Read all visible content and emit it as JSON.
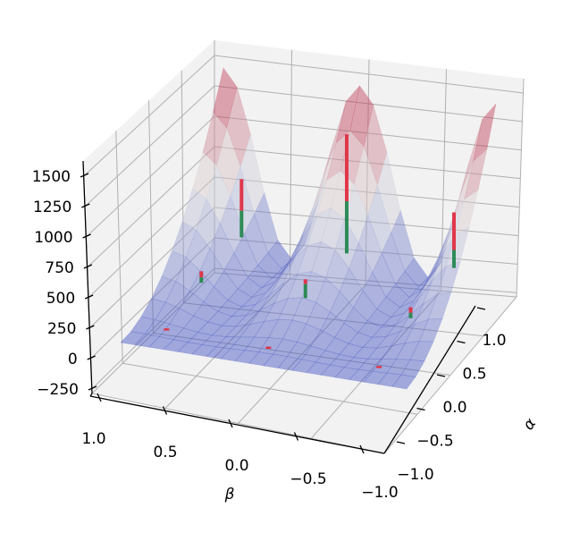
{
  "chart_data": {
    "type": "surface",
    "title": "",
    "xlabel": "β",
    "ylabel": "α",
    "zlabel": "",
    "colormap": "coolwarm",
    "surface_alpha": 0.45,
    "color_range": [
      0,
      1500
    ],
    "xlim": [
      -1,
      1
    ],
    "ylim": [
      -1,
      1
    ],
    "zlim": [
      -287,
      1625
    ],
    "grid": true,
    "beta_ticks": [
      1.0,
      0.5,
      0.0,
      -0.5,
      -1.0
    ],
    "beta_tick_labels": [
      "1.0",
      "0.5",
      "0.0",
      "−0.5",
      "−1.0"
    ],
    "alpha_ticks": [
      1.0,
      0.5,
      0.0,
      -0.5,
      -1.0
    ],
    "alpha_tick_labels": [
      "1.0",
      "0.5",
      "0.0",
      "−0.5",
      "−1.0"
    ],
    "z_ticks": [
      1500,
      1250,
      1000,
      750,
      500,
      250,
      0,
      -250
    ],
    "z_tick_labels": [
      "1500",
      "1250",
      "1000",
      "750",
      "500",
      "250",
      "0",
      "−250"
    ],
    "surface": {
      "beta": [
        -1,
        -0.9,
        -0.8,
        -0.7,
        -0.6,
        -0.5,
        -0.4,
        -0.3,
        -0.2,
        -0.1,
        0,
        0.1,
        0.2,
        0.3,
        0.4,
        0.5,
        0.6,
        0.7,
        0.8,
        0.9,
        1
      ],
      "alpha": [
        -1,
        -0.8,
        -0.6,
        -0.4,
        -0.2,
        0,
        0.2,
        0.4,
        0.6,
        0.8,
        1
      ],
      "z": [
        [
          0,
          0,
          0,
          0,
          0,
          0,
          0,
          0,
          0,
          0,
          0,
          0,
          0,
          0,
          0,
          0,
          0,
          0,
          0,
          0,
          0
        ],
        [
          15,
          14,
          10,
          5,
          1,
          0,
          1,
          5,
          10,
          14,
          15,
          14,
          10,
          5,
          1,
          0,
          1,
          5,
          10,
          14,
          15
        ],
        [
          60,
          54,
          39,
          21,
          6,
          0,
          6,
          21,
          39,
          54,
          60,
          54,
          39,
          21,
          6,
          0,
          6,
          21,
          39,
          54,
          60
        ],
        [
          135,
          122,
          88,
          47,
          13,
          0,
          13,
          47,
          88,
          122,
          135,
          122,
          88,
          47,
          13,
          0,
          13,
          47,
          88,
          122,
          135
        ],
        [
          240,
          217,
          157,
          83,
          23,
          0,
          23,
          83,
          157,
          217,
          240,
          217,
          157,
          83,
          23,
          0,
          23,
          83,
          157,
          217,
          240
        ],
        [
          375,
          339,
          245,
          130,
          36,
          0,
          36,
          130,
          245,
          339,
          375,
          339,
          245,
          130,
          36,
          0,
          36,
          130,
          245,
          339,
          375
        ],
        [
          540,
          488,
          353,
          187,
          52,
          0,
          52,
          187,
          353,
          488,
          540,
          488,
          353,
          187,
          52,
          0,
          52,
          187,
          353,
          488,
          540
        ],
        [
          735,
          665,
          481,
          254,
          70,
          0,
          70,
          254,
          481,
          665,
          735,
          665,
          481,
          254,
          70,
          0,
          70,
          254,
          481,
          665,
          735
        ],
        [
          960,
          868,
          628,
          332,
          92,
          0,
          92,
          332,
          628,
          868,
          960,
          868,
          628,
          332,
          92,
          0,
          92,
          332,
          628,
          868,
          960
        ],
        [
          1215,
          1099,
          795,
          420,
          116,
          0,
          116,
          420,
          795,
          1099,
          1215,
          1099,
          795,
          420,
          116,
          0,
          116,
          420,
          795,
          1099,
          1215
        ],
        [
          1500,
          1357,
          982,
          518,
          143,
          0,
          143,
          518,
          982,
          1357,
          1500,
          1357,
          982,
          518,
          143,
          0,
          143,
          518,
          982,
          1357,
          1500
        ]
      ]
    },
    "markers": [
      {
        "beta": 0.8,
        "alpha": 0.82,
        "z_bottom": 205,
        "z_split": 425,
        "z_top": 685
      },
      {
        "beta": 0.0,
        "alpha": 0.73,
        "z_bottom": 230,
        "z_split": 660,
        "z_top": 1210
      },
      {
        "beta": -0.9,
        "alpha": 0.37,
        "z_bottom": 400,
        "z_split": 548,
        "z_top": 857
      },
      {
        "beta": 0.9,
        "alpha": 0.3,
        "z_bottom": 15,
        "z_split": 60,
        "z_top": 110
      },
      {
        "beta": 0.1,
        "alpha": 0.16,
        "z_bottom": 75,
        "z_split": 190,
        "z_top": 230
      },
      {
        "beta": -0.65,
        "alpha": 0.18,
        "z_bottom": 25,
        "z_split": 70,
        "z_top": 115
      }
    ],
    "point_marks": [
      {
        "beta": 0.75,
        "alpha": -0.8,
        "z": 80
      },
      {
        "beta": 0.0,
        "alpha": -0.9,
        "z": 110
      },
      {
        "beta": -0.75,
        "alpha": -0.82,
        "z": 60
      }
    ],
    "colors": {
      "pane": "#f2f2f2",
      "grid": "#b0b0b0",
      "marker_upper": "#e0374a",
      "marker_lower": "#2e8b57",
      "cmap_low": "#3b4cc0",
      "cmap_mid": "#dddddd",
      "cmap_high": "#b40426"
    }
  }
}
